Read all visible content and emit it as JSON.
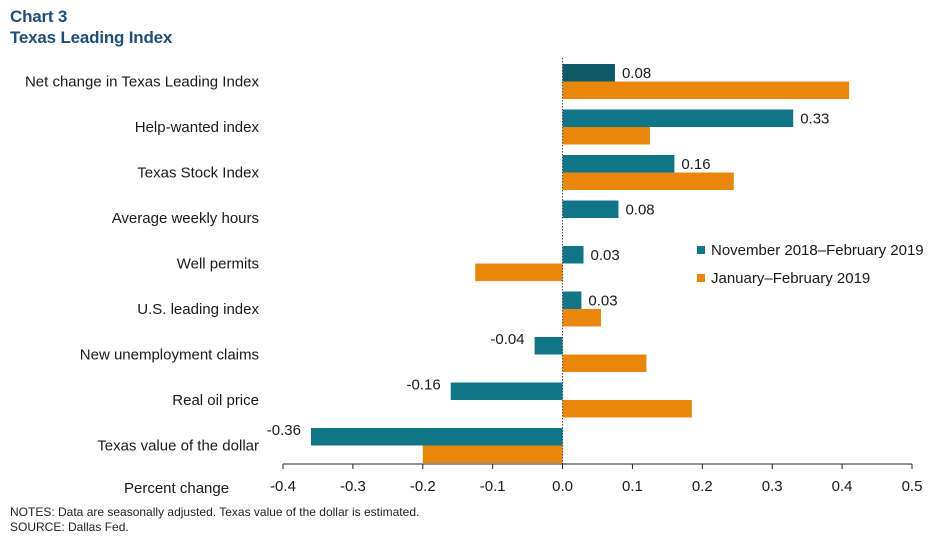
{
  "header": {
    "chart_number": "Chart 3",
    "title": "Texas Leading Index"
  },
  "chart_data": {
    "type": "bar",
    "orientation": "horizontal",
    "title": "Texas Leading Index",
    "xlabel": "Percent change",
    "xlim": [
      -0.4,
      0.5
    ],
    "xticks": [
      "-0.4",
      "-0.3",
      "-0.2",
      "-0.1",
      "0.0",
      "0.1",
      "0.2",
      "0.3",
      "0.4",
      "0.5"
    ],
    "grid": false,
    "legend_position": "right",
    "categories": [
      "Net change in Texas Leading Index",
      "Help-wanted index",
      "Texas Stock Index",
      "Average weekly hours",
      "Well permits",
      "U.S. leading index",
      "New unemployment claims",
      "Real oil price",
      "Texas value of the dollar"
    ],
    "series": [
      {
        "name": "November 2018–February 2019",
        "color": "#107587",
        "values": [
          0.075,
          0.33,
          0.16,
          0.08,
          0.03,
          0.027,
          -0.04,
          -0.16,
          -0.36
        ],
        "labels": [
          "0.08",
          "0.33",
          "0.16",
          "0.08",
          "0.03",
          "0.03",
          "-0.04",
          "-0.16",
          "-0.36"
        ]
      },
      {
        "name": "January–February  2019",
        "color": "#e8870c",
        "values": [
          0.41,
          0.125,
          0.245,
          0.0,
          -0.125,
          0.055,
          0.12,
          0.185,
          -0.2
        ]
      }
    ],
    "highlight_color": "#0e5966"
  },
  "notes": {
    "line1": "NOTES: Data are seasonally adjusted. Texas value of the dollar is estimated.",
    "line2": "SOURCE: Dallas Fed."
  }
}
